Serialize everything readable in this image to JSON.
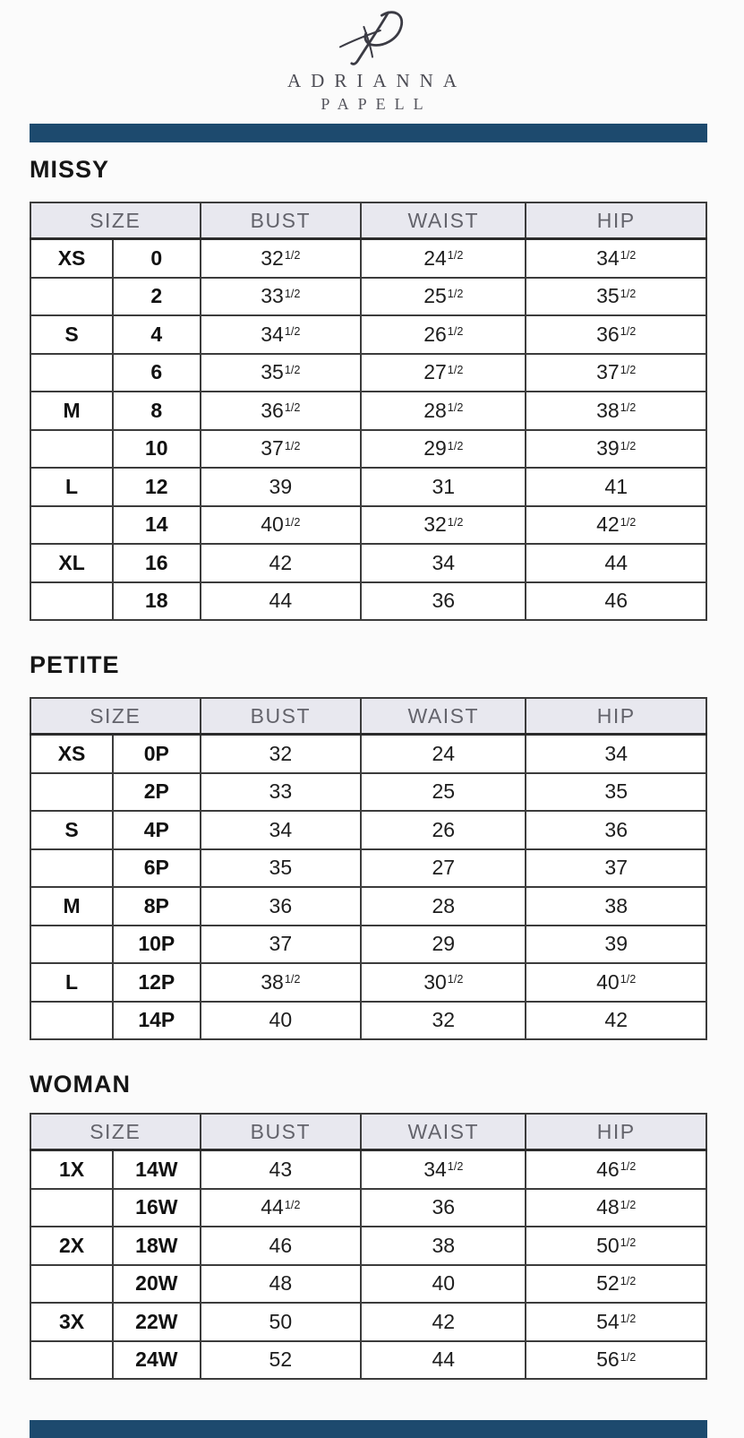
{
  "brand": {
    "line1": "ADRIANNA",
    "line2": "PAPELL",
    "monogram_icon": "ap-script-monogram"
  },
  "colors": {
    "bar": "#1d4a6e",
    "table_header_bg": "#e8e8ef",
    "table_header_text": "#63636b",
    "monogram_stroke": "#3b3b44"
  },
  "sections": [
    {
      "id": "missy",
      "heading": "MISSY",
      "columns": [
        "SIZE",
        "BUST",
        "WAIST",
        "HIP"
      ],
      "rows": [
        {
          "group": "XS",
          "size": "0",
          "bust": "32½",
          "waist": "24½",
          "hip": "34½"
        },
        {
          "group": "",
          "size": "2",
          "bust": "33½",
          "waist": "25½",
          "hip": "35½"
        },
        {
          "group": "S",
          "size": "4",
          "bust": "34½",
          "waist": "26½",
          "hip": "36½"
        },
        {
          "group": "",
          "size": "6",
          "bust": "35½",
          "waist": "27½",
          "hip": "37½"
        },
        {
          "group": "M",
          "size": "8",
          "bust": "36½",
          "waist": "28½",
          "hip": "38½"
        },
        {
          "group": "",
          "size": "10",
          "bust": "37½",
          "waist": "29½",
          "hip": "39½"
        },
        {
          "group": "L",
          "size": "12",
          "bust": "39",
          "waist": "31",
          "hip": "41"
        },
        {
          "group": "",
          "size": "14",
          "bust": "40½",
          "waist": "32½",
          "hip": "42½"
        },
        {
          "group": "XL",
          "size": "16",
          "bust": "42",
          "waist": "34",
          "hip": "44"
        },
        {
          "group": "",
          "size": "18",
          "bust": "44",
          "waist": "36",
          "hip": "46"
        }
      ]
    },
    {
      "id": "petite",
      "heading": "PETITE",
      "columns": [
        "SIZE",
        "BUST",
        "WAIST",
        "HIP"
      ],
      "rows": [
        {
          "group": "XS",
          "size": "0P",
          "bust": "32",
          "waist": "24",
          "hip": "34"
        },
        {
          "group": "",
          "size": "2P",
          "bust": "33",
          "waist": "25",
          "hip": "35"
        },
        {
          "group": "S",
          "size": "4P",
          "bust": "34",
          "waist": "26",
          "hip": "36"
        },
        {
          "group": "",
          "size": "6P",
          "bust": "35",
          "waist": "27",
          "hip": "37"
        },
        {
          "group": "M",
          "size": "8P",
          "bust": "36",
          "waist": "28",
          "hip": "38"
        },
        {
          "group": "",
          "size": "10P",
          "bust": "37",
          "waist": "29",
          "hip": "39"
        },
        {
          "group": "L",
          "size": "12P",
          "bust": "38½",
          "waist": "30½",
          "hip": "40½"
        },
        {
          "group": "",
          "size": "14P",
          "bust": "40",
          "waist": "32",
          "hip": "42"
        }
      ]
    },
    {
      "id": "woman",
      "heading": "WOMAN",
      "columns": [
        "SIZE",
        "BUST",
        "WAIST",
        "HIP"
      ],
      "rows": [
        {
          "group": "1X",
          "size": "14W",
          "bust": "43",
          "waist": "34½",
          "hip": "46½"
        },
        {
          "group": "",
          "size": "16W",
          "bust": "44½",
          "waist": "36",
          "hip": "48½"
        },
        {
          "group": "2X",
          "size": "18W",
          "bust": "46",
          "waist": "38",
          "hip": "50½"
        },
        {
          "group": "",
          "size": "20W",
          "bust": "48",
          "waist": "40",
          "hip": "52½"
        },
        {
          "group": "3X",
          "size": "22W",
          "bust": "50",
          "waist": "42",
          "hip": "54½"
        },
        {
          "group": "",
          "size": "24W",
          "bust": "52",
          "waist": "44",
          "hip": "56½"
        }
      ]
    }
  ]
}
